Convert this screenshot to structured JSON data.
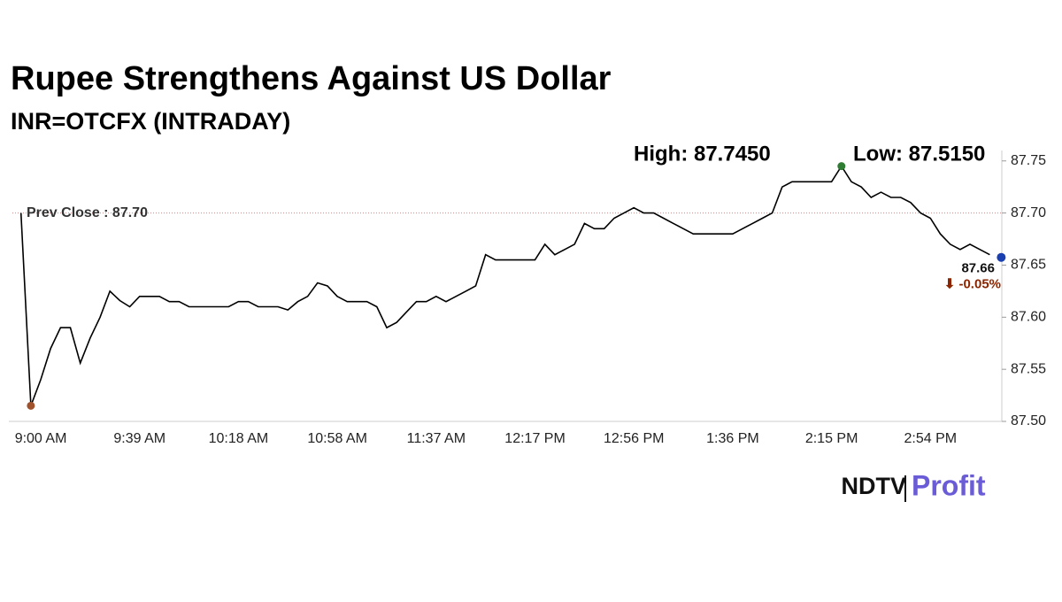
{
  "chart_data": {
    "type": "line",
    "title": "Rupee Strengthens Against US Dollar",
    "subtitle": "INR=OTCFX (INTRADAY)",
    "high_label": "High: 87.7450",
    "low_label": "Low: 87.5150",
    "prev_close": {
      "value": 87.7,
      "label": "Prev Close : 87.70"
    },
    "last_label": "87.66",
    "change_label": "⬇ -0.05%",
    "brand": [
      "NDTV",
      "Profit"
    ],
    "categories": [
      null,
      null,
      "9:00 AM",
      null,
      null,
      null,
      null,
      null,
      null,
      null,
      null,
      null,
      "9:39 AM",
      null,
      null,
      null,
      null,
      null,
      null,
      null,
      null,
      null,
      "10:18 AM",
      null,
      null,
      null,
      null,
      null,
      null,
      null,
      null,
      null,
      "10:58 AM",
      null,
      null,
      null,
      null,
      null,
      null,
      null,
      null,
      null,
      "11:37 AM",
      null,
      null,
      null,
      null,
      null,
      null,
      null,
      null,
      null,
      "12:17 PM",
      null,
      null,
      null,
      null,
      null,
      null,
      null,
      null,
      null,
      "12:56 PM",
      null,
      null,
      null,
      null,
      null,
      null,
      null,
      null,
      null,
      "1:36 PM",
      null,
      null,
      null,
      null,
      null,
      null,
      null,
      null,
      null,
      "2:15 PM",
      null,
      null,
      null,
      null,
      null,
      null,
      null,
      null,
      null,
      "2:54 PM",
      null,
      null,
      null,
      null,
      null,
      null
    ],
    "series": [
      {
        "name": "INR=OTCFX",
        "color": "#000000",
        "values": [
          87.7,
          87.515,
          87.54,
          87.57,
          87.59,
          87.59,
          87.556,
          87.58,
          87.6,
          87.625,
          87.616,
          87.61,
          87.62,
          87.62,
          87.62,
          87.615,
          87.615,
          87.61,
          87.61,
          87.61,
          87.61,
          87.61,
          87.615,
          87.615,
          87.61,
          87.61,
          87.61,
          87.607,
          87.615,
          87.62,
          87.633,
          87.63,
          87.62,
          87.615,
          87.615,
          87.615,
          87.61,
          87.59,
          87.595,
          87.605,
          87.615,
          87.615,
          87.62,
          87.615,
          87.62,
          87.625,
          87.63,
          87.66,
          87.655,
          87.655,
          87.655,
          87.655,
          87.655,
          87.67,
          87.66,
          87.665,
          87.67,
          87.69,
          87.685,
          87.685,
          87.695,
          87.7,
          87.705,
          87.7,
          87.7,
          87.695,
          87.69,
          87.685,
          87.68,
          87.68,
          87.68,
          87.68,
          87.68,
          87.685,
          87.69,
          87.695,
          87.7,
          87.725,
          87.73,
          87.73,
          87.73,
          87.73,
          87.73,
          87.745,
          87.73,
          87.725,
          87.715,
          87.72,
          87.715,
          87.715,
          87.71,
          87.7,
          87.695,
          87.68,
          87.67,
          87.665,
          87.67,
          87.665,
          87.66
        ]
      }
    ],
    "ylim": [
      87.5,
      87.76
    ],
    "yticks": [
      {
        "value": 87.5,
        "label": "87.50"
      },
      {
        "value": 87.55,
        "label": "87.55"
      },
      {
        "value": 87.6,
        "label": "87.60"
      },
      {
        "value": 87.65,
        "label": "87.65"
      },
      {
        "value": 87.7,
        "label": "87.70"
      },
      {
        "value": 87.75,
        "label": "87.75"
      }
    ],
    "high_color": "#2e7d32",
    "low_color": "#a0522d",
    "last_color": "#1a3fb0"
  }
}
